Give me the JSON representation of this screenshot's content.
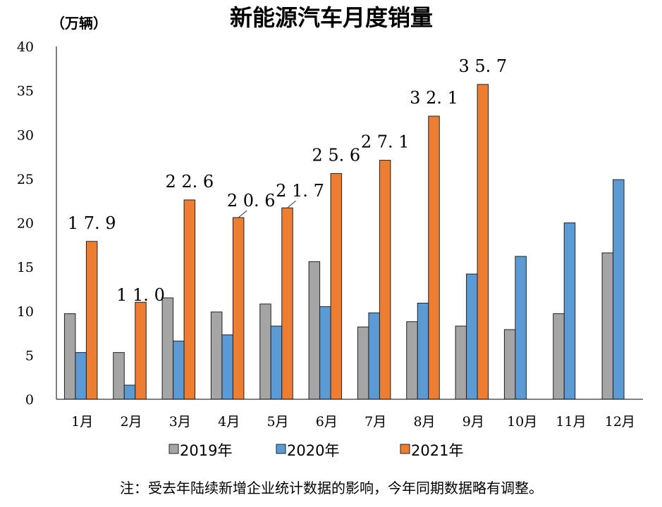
{
  "chart_data": {
    "type": "bar",
    "title": "新能源汽车月度销量",
    "unit_label": "（万辆）",
    "categories": [
      "1月",
      "2月",
      "3月",
      "4月",
      "5月",
      "6月",
      "7月",
      "8月",
      "9月",
      "10月",
      "11月",
      "12月"
    ],
    "ylim": [
      0,
      40
    ],
    "yticks": [
      0,
      5,
      10,
      15,
      20,
      25,
      30,
      35,
      40
    ],
    "grid": false,
    "legend_position": "bottom",
    "series": [
      {
        "name": "2019年",
        "color": "#a5a5a5",
        "values": [
          9.7,
          5.3,
          11.5,
          9.9,
          10.8,
          15.6,
          8.2,
          8.8,
          8.3,
          7.9,
          9.7,
          16.6
        ]
      },
      {
        "name": "2020年",
        "color": "#5b9bd5",
        "values": [
          5.3,
          1.6,
          6.6,
          7.3,
          8.3,
          10.5,
          9.8,
          10.9,
          14.2,
          16.2,
          20.0,
          24.9
        ]
      },
      {
        "name": "2021年",
        "color": "#ed7d31",
        "values": [
          17.9,
          11.0,
          22.6,
          20.6,
          21.7,
          25.6,
          27.1,
          32.1,
          35.7,
          null,
          null,
          null
        ],
        "data_labels": [
          "17.9",
          "11.0",
          "22.6",
          "20.6",
          "21.7",
          "25.6",
          "27.1",
          "32.1",
          "35.7"
        ]
      }
    ],
    "note": "注：受去年陆续新增企业统计数据的影响，今年同期数据略有调整。"
  }
}
